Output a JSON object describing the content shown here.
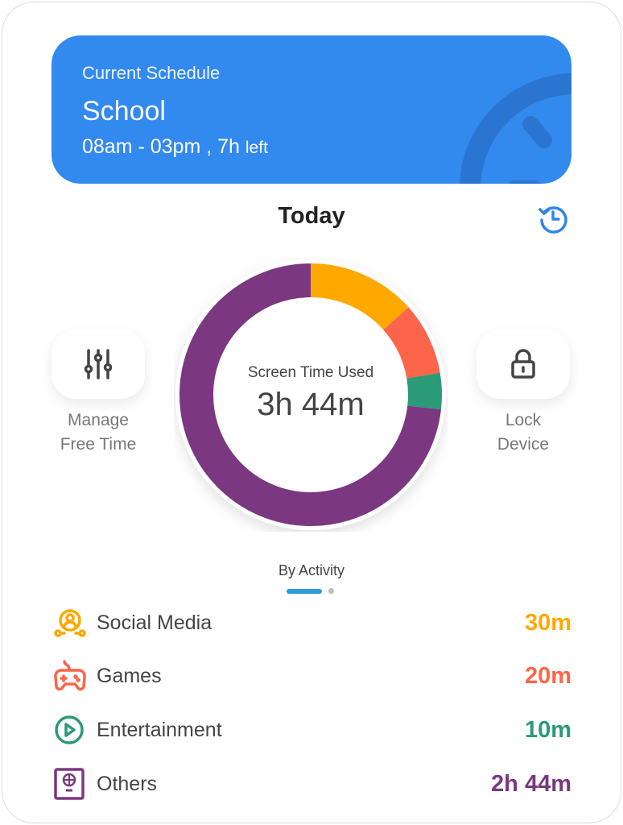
{
  "schedule": {
    "label": "Current Schedule",
    "name": "School",
    "time": "08am - 03pm , 7h",
    "left": "left",
    "icon": "clock-icon"
  },
  "today": {
    "title": "Today",
    "history_icon": "history-icon"
  },
  "actions": [
    {
      "label1": "Manage",
      "label2": "Free Time",
      "icon": "sliders-icon"
    },
    {
      "label1": "Lock",
      "label2": "Device",
      "icon": "lock-icon"
    }
  ],
  "center": {
    "label": "Screen Time Used",
    "value": "3h 44m"
  },
  "by_activity": "By Activity",
  "pager": {
    "pages": 2,
    "active": 1
  },
  "chart_data": {
    "type": "pie",
    "values_minutes": [
      30,
      20,
      10,
      164
    ],
    "categories": [
      "Social Media",
      "Games",
      "Entertainment",
      "Others"
    ],
    "colors": [
      "#ffa800",
      "#fc6549",
      "#2a9a77",
      "#7b3780"
    ]
  },
  "activities": [
    {
      "name": "Social Media",
      "value": "30m",
      "color": "#ffa800",
      "icon": "social-media-icon"
    },
    {
      "name": "Games",
      "value": "20m",
      "color": "#fc6549",
      "icon": "gamepad-icon"
    },
    {
      "name": "Entertainment",
      "value": "10m",
      "color": "#2a9a77",
      "icon": "play-icon"
    },
    {
      "name": "Others",
      "value": "2h 44m",
      "color": "#7b3780",
      "icon": "globe-book-icon"
    }
  ]
}
